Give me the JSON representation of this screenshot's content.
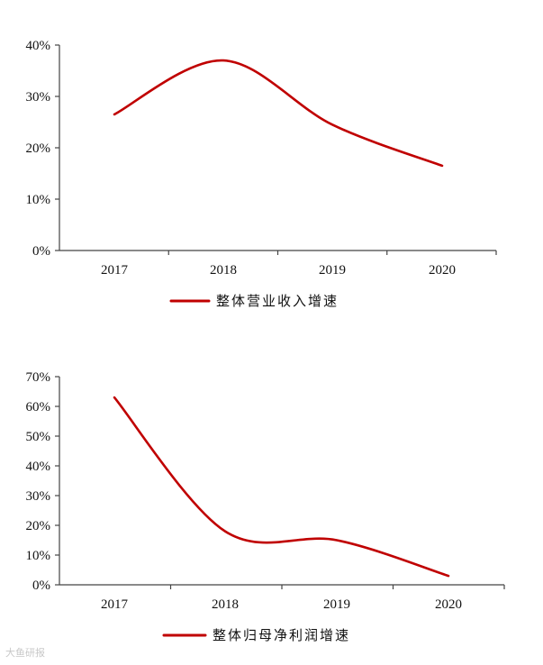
{
  "chart_data": [
    {
      "type": "line",
      "x": [
        "2017",
        "2018",
        "2019",
        "2020"
      ],
      "series": [
        {
          "name": "整体营业收入增速",
          "values": [
            26.5,
            37,
            24.5,
            16.5
          ],
          "color": "#c00000"
        }
      ],
      "yticks": [
        "0%",
        "10%",
        "20%",
        "30%",
        "40%"
      ],
      "ylim": [
        0,
        40
      ],
      "legend": "bottom-left",
      "grid": false
    },
    {
      "type": "line",
      "x": [
        "2017",
        "2018",
        "2019",
        "2020"
      ],
      "series": [
        {
          "name": "整体归母净利润增速",
          "values": [
            63,
            18,
            15,
            3
          ],
          "color": "#c00000"
        }
      ],
      "yticks": [
        "0%",
        "10%",
        "20%",
        "30%",
        "40%",
        "50%",
        "60%",
        "70%"
      ],
      "ylim": [
        0,
        70
      ],
      "legend": "bottom-left",
      "grid": false
    }
  ],
  "watermark": "大鱼研报"
}
